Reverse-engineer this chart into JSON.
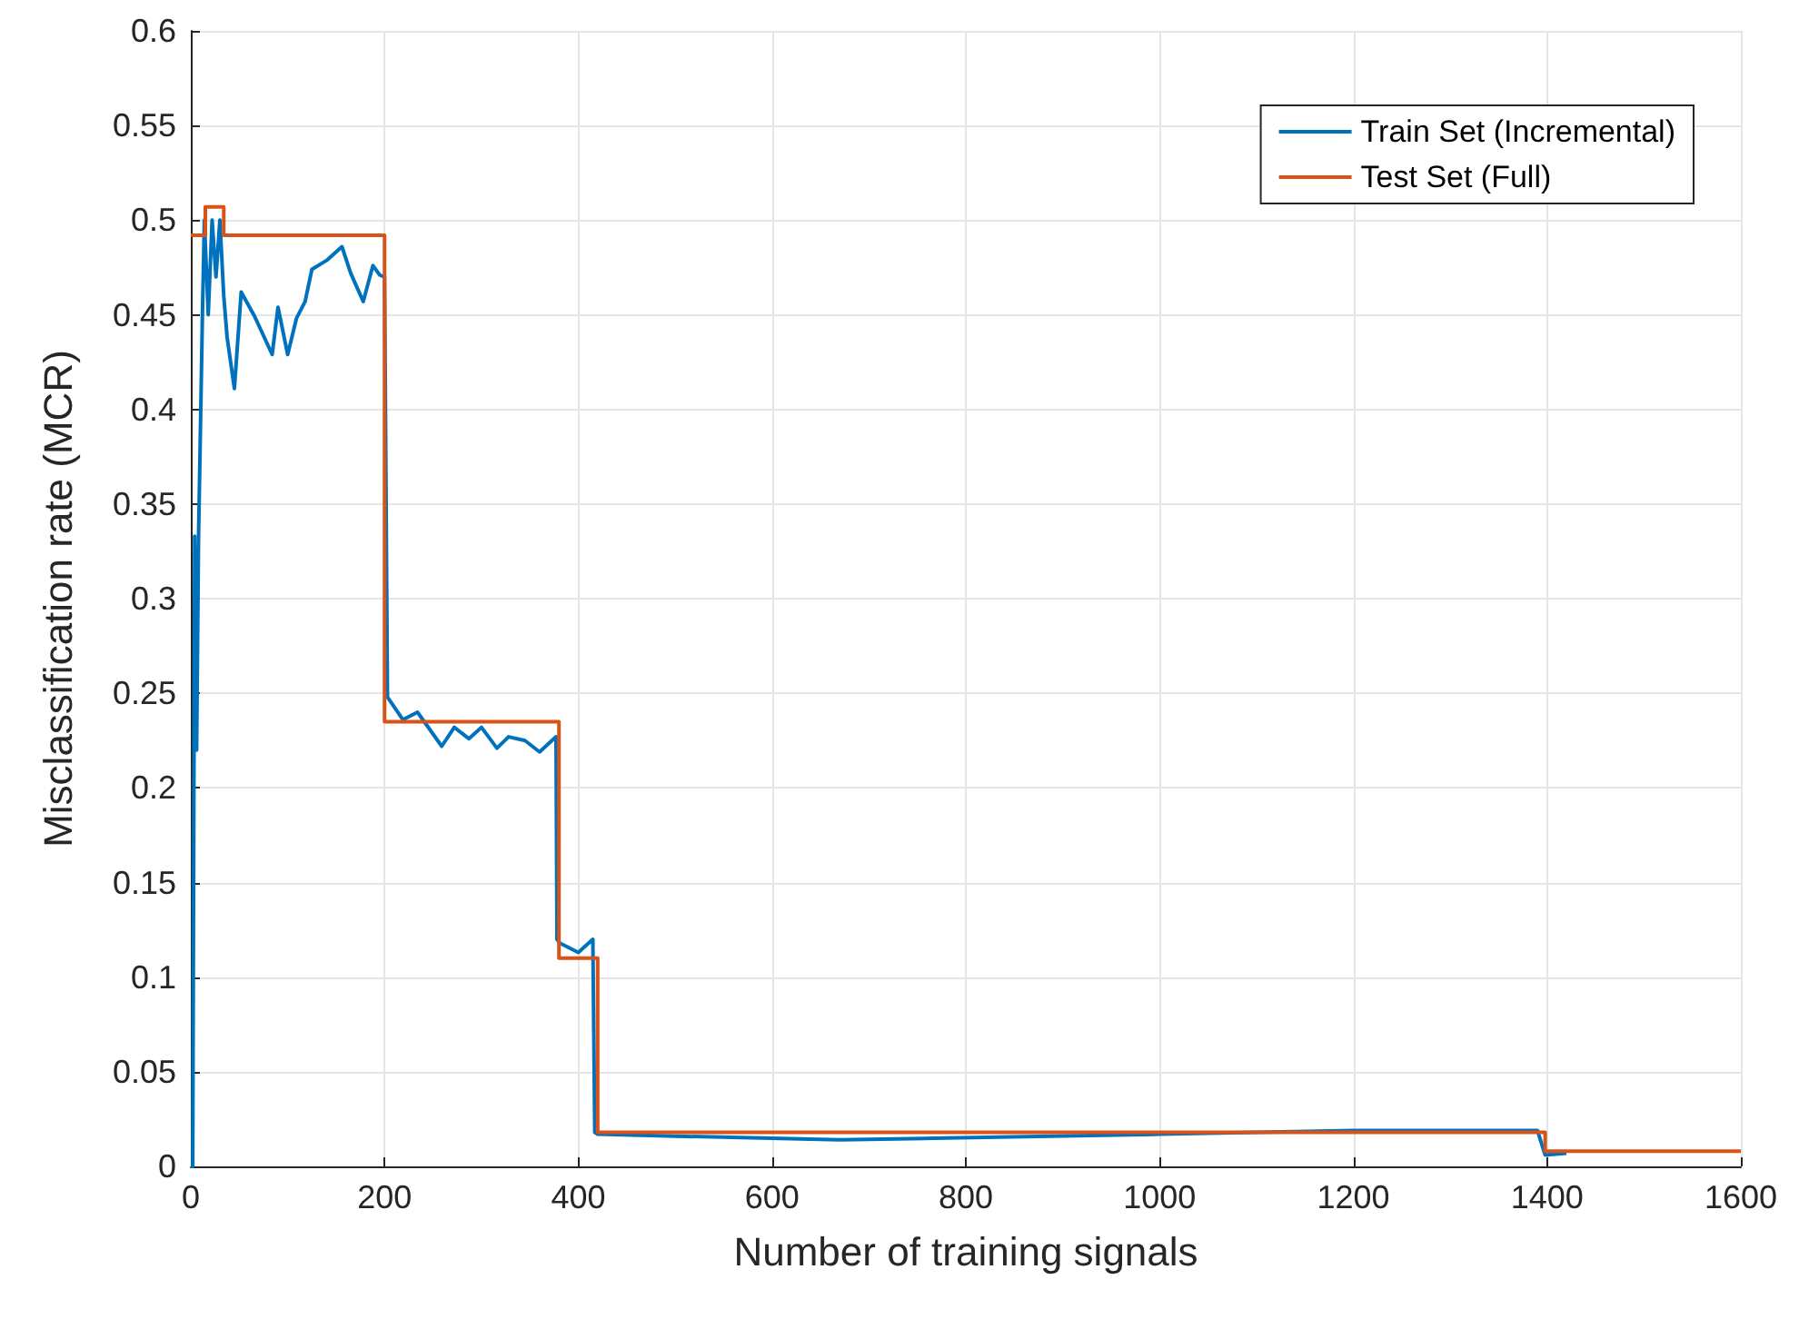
{
  "chart_data": {
    "type": "line",
    "xlabel": "Number of training signals",
    "ylabel": "Misclassification rate (MCR)",
    "xlim": [
      0,
      1600
    ],
    "xticks": [
      0,
      200,
      400,
      600,
      800,
      1000,
      1200,
      1400,
      1600
    ],
    "ylim": [
      0,
      0.6
    ],
    "yticks": [
      0,
      0.05,
      0.1,
      0.15,
      0.2,
      0.25,
      0.3,
      0.35,
      0.4,
      0.45,
      0.5,
      0.55,
      0.6
    ],
    "grid": true,
    "legend": "top right",
    "marker": "none",
    "line_style": "solid",
    "series": [
      {
        "name": "Train Set (Incremental)",
        "color": "#0072bd",
        "x": [
          0,
          2,
          4,
          6,
          8,
          12,
          14,
          18,
          22,
          26,
          30,
          34,
          37.5,
          45,
          52,
          66,
          84,
          90,
          100,
          109,
          118,
          125,
          141,
          156,
          165,
          178,
          188,
          195,
          200,
          203,
          219,
          234,
          259,
          272,
          287,
          300,
          316,
          328,
          345,
          360,
          377,
          378,
          381,
          400,
          415,
          417,
          420,
          500,
          670,
          780,
          1000,
          1200,
          1390,
          1398,
          1420
        ],
        "values": [
          0,
          0,
          0.333,
          0.22,
          0.333,
          0.45,
          0.5,
          0.45,
          0.5,
          0.47,
          0.5,
          0.46,
          0.438,
          0.411,
          0.462,
          0.449,
          0.429,
          0.454,
          0.429,
          0.448,
          0.457,
          0.474,
          0.479,
          0.486,
          0.472,
          0.457,
          0.476,
          0.471,
          0.47,
          0.248,
          0.236,
          0.24,
          0.222,
          0.232,
          0.226,
          0.232,
          0.221,
          0.227,
          0.225,
          0.219,
          0.227,
          0.12,
          0.118,
          0.113,
          0.12,
          0.018,
          0.017,
          0.016,
          0.014,
          0.015,
          0.017,
          0.019,
          0.019,
          0.006,
          0.007
        ]
      },
      {
        "name": "Test Set (Full)",
        "color": "#d95319",
        "x": [
          0,
          15,
          15,
          34,
          34,
          200,
          200,
          380,
          380,
          420,
          420,
          1398,
          1398,
          1600
        ],
        "values": [
          0.492,
          0.492,
          0.507,
          0.507,
          0.492,
          0.492,
          0.235,
          0.235,
          0.11,
          0.11,
          0.018,
          0.018,
          0.008,
          0.008
        ]
      }
    ]
  }
}
